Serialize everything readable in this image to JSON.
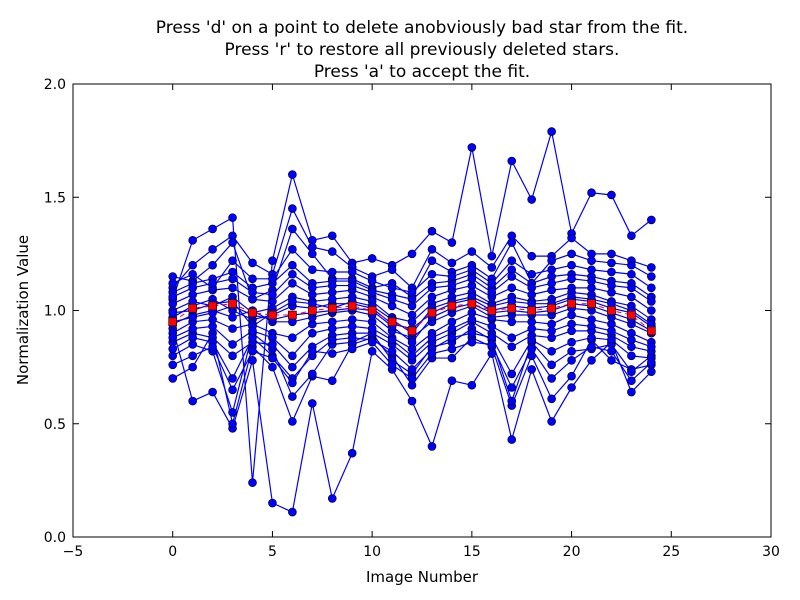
{
  "chart_data": {
    "type": "line",
    "title_lines": [
      "Press 'd' on a point to delete anobviously bad star from the fit.",
      "Press 'r' to restore all previously deleted stars.",
      "Press 'a' to accept the fit."
    ],
    "xlabel": "Image Number",
    "ylabel": "Normalization Value",
    "xlim": [
      -5,
      30
    ],
    "ylim": [
      0.0,
      2.0
    ],
    "xticks": [
      -5,
      0,
      5,
      10,
      15,
      20,
      25,
      30
    ],
    "yticks": [
      0.0,
      0.5,
      1.0,
      1.5,
      2.0
    ],
    "xtick_labels": [
      "−5",
      "0",
      "5",
      "10",
      "15",
      "20",
      "25",
      "30"
    ],
    "ytick_labels": [
      "0.0",
      "0.5",
      "1.0",
      "1.5",
      "2.0"
    ],
    "grid": false,
    "legend": null,
    "x": [
      0,
      1,
      2,
      3,
      4,
      5,
      6,
      7,
      8,
      9,
      10,
      11,
      12,
      13,
      14,
      15,
      16,
      17,
      18,
      19,
      20,
      21,
      22,
      23,
      24
    ],
    "series": [
      {
        "role": "stars",
        "color": "#0000ff",
        "marker": "circle",
        "lines": [
          [
            1.05,
            1.31,
            1.36,
            1.41,
            0.24,
            1.22,
            1.6,
            1.31,
            1.33,
            1.21,
            1.23,
            1.2,
            1.25,
            1.35,
            1.3,
            1.72,
            1.24,
            1.66,
            1.49,
            1.79,
            1.34,
            1.52,
            1.51,
            1.33,
            1.4
          ],
          [
            0.92,
            0.6,
            0.64,
            0.48,
            0.78,
            0.15,
            0.11,
            0.59,
            0.17,
            0.37,
            0.82,
            0.74,
            0.6,
            0.4,
            0.69,
            0.67,
            0.81,
            0.43,
            0.74,
            0.51,
            0.66,
            0.78,
            0.86,
            0.64,
            0.73
          ],
          [
            0.7,
            0.75,
            0.9,
            0.5,
            0.84,
            0.75,
            0.51,
            0.71,
            0.69,
            0.85,
            0.88,
            0.8,
            0.67,
            0.79,
            0.79,
            0.88,
            0.84,
            0.58,
            0.8,
            0.61,
            0.71,
            0.87,
            0.78,
            0.74,
            0.76
          ],
          [
            1.1,
            1.2,
            1.27,
            1.33,
            1.21,
            1.16,
            1.45,
            1.28,
            1.26,
            1.19,
            1.15,
            1.18,
            1.1,
            1.27,
            1.21,
            1.26,
            1.19,
            1.33,
            1.24,
            1.24,
            1.32,
            1.25,
            1.25,
            1.22,
            1.19
          ],
          [
            1.15,
            1.13,
            1.2,
            1.3,
            1.05,
            1.09,
            1.36,
            1.25,
            1.14,
            1.14,
            1.1,
            1.12,
            1.06,
            1.22,
            1.17,
            1.2,
            1.14,
            1.3,
            1.12,
            1.22,
            1.25,
            1.22,
            1.21,
            1.2,
            1.15
          ],
          [
            0.8,
            0.85,
            0.82,
            0.55,
            0.9,
            0.83,
            0.62,
            0.72,
            0.85,
            0.86,
            0.9,
            0.78,
            0.72,
            0.84,
            0.86,
            0.92,
            0.87,
            0.6,
            0.86,
            0.76,
            0.82,
            0.83,
            0.85,
            0.73,
            0.8
          ],
          [
            0.97,
            1.02,
            1.05,
            1.0,
            0.96,
            0.98,
            1.02,
            1.01,
            1.03,
            1.03,
            1.01,
            0.94,
            0.92,
            0.99,
            1.03,
            1.05,
            1.0,
            1.02,
            1.01,
            1.02,
            1.05,
            1.04,
            1.01,
            0.99,
            0.93
          ],
          [
            0.9,
            0.95,
            0.96,
            0.92,
            0.94,
            0.9,
            0.88,
            0.94,
            0.95,
            0.96,
            0.95,
            0.88,
            0.83,
            0.9,
            0.95,
            0.99,
            0.96,
            0.95,
            0.95,
            0.94,
            0.98,
            0.96,
            0.94,
            0.9,
            0.86
          ],
          [
            1.03,
            1.07,
            1.09,
            1.1,
            1.05,
            1.04,
            1.12,
            1.07,
            1.08,
            1.09,
            1.06,
            1.02,
            0.98,
            1.06,
            1.09,
            1.11,
            1.06,
            1.1,
            1.07,
            1.09,
            1.1,
            1.1,
            1.08,
            1.06,
            1.0
          ],
          [
            0.86,
            0.9,
            0.88,
            0.8,
            0.86,
            0.85,
            0.75,
            0.84,
            0.89,
            0.9,
            0.9,
            0.85,
            0.78,
            0.86,
            0.9,
            0.95,
            0.9,
            0.84,
            0.89,
            0.88,
            0.91,
            0.91,
            0.89,
            0.84,
            0.82
          ],
          [
            1.08,
            1.12,
            1.14,
            1.17,
            1.1,
            1.12,
            1.2,
            1.12,
            1.13,
            1.13,
            1.09,
            1.07,
            1.05,
            1.12,
            1.13,
            1.16,
            1.1,
            1.18,
            1.12,
            1.15,
            1.16,
            1.15,
            1.13,
            1.12,
            1.06
          ],
          [
            0.94,
            0.98,
            1.0,
            0.97,
            1.0,
            0.95,
            0.95,
            0.97,
            0.99,
            1.0,
            0.98,
            0.91,
            0.88,
            0.95,
            0.99,
            1.02,
            0.97,
            0.98,
            0.98,
            0.98,
            1.01,
            1.0,
            0.97,
            0.94,
            0.9
          ],
          [
            1.0,
            1.04,
            1.02,
            1.06,
            0.99,
            1.01,
            1.06,
            1.04,
            1.05,
            1.06,
            1.04,
            0.97,
            0.95,
            1.03,
            1.06,
            1.08,
            1.03,
            1.06,
            1.04,
            1.05,
            1.08,
            1.07,
            1.04,
            1.02,
            0.96
          ],
          [
            0.83,
            0.88,
            0.86,
            0.7,
            0.88,
            0.8,
            0.7,
            0.8,
            0.87,
            0.88,
            0.87,
            0.82,
            0.74,
            0.83,
            0.88,
            0.9,
            0.88,
            0.72,
            0.87,
            0.82,
            0.86,
            0.88,
            0.87,
            0.8,
            0.79
          ],
          [
            1.12,
            1.16,
            1.1,
            1.22,
            1.14,
            1.14,
            1.27,
            1.18,
            1.17,
            1.17,
            1.13,
            1.1,
            1.08,
            1.16,
            1.15,
            1.18,
            1.12,
            1.22,
            1.16,
            1.18,
            1.2,
            1.18,
            1.17,
            1.16,
            1.1
          ],
          [
            0.76,
            0.8,
            0.84,
            0.65,
            0.82,
            0.79,
            0.68,
            0.82,
            0.81,
            0.83,
            0.86,
            0.76,
            0.7,
            0.81,
            0.83,
            0.86,
            0.85,
            0.66,
            0.83,
            0.7,
            0.78,
            0.84,
            0.82,
            0.69,
            0.77
          ],
          [
            0.99,
            1.0,
            1.03,
            1.04,
            0.93,
            0.99,
            1.04,
            1.03,
            1.01,
            1.04,
            1.02,
            0.96,
            0.9,
            1.01,
            1.04,
            1.06,
            1.02,
            1.04,
            1.03,
            1.03,
            1.06,
            1.05,
            1.03,
            1.0,
            0.94
          ],
          [
            0.95,
            0.97,
            0.99,
            1.02,
            0.98,
            0.96,
            0.98,
            0.99,
            1.0,
            1.01,
            1.0,
            0.93,
            0.86,
            0.97,
            1.01,
            1.03,
            0.99,
            1.0,
            0.99,
            1.0,
            1.03,
            1.02,
            0.99,
            0.96,
            0.91
          ],
          [
            0.88,
            0.92,
            0.93,
            0.85,
            0.91,
            0.88,
            0.8,
            0.9,
            0.92,
            0.93,
            0.92,
            0.87,
            0.8,
            0.88,
            0.92,
            0.96,
            0.93,
            0.88,
            0.92,
            0.91,
            0.94,
            0.93,
            0.91,
            0.87,
            0.84
          ],
          [
            1.06,
            1.1,
            1.12,
            1.14,
            1.08,
            1.07,
            1.16,
            1.1,
            1.11,
            1.11,
            1.08,
            1.05,
            1.02,
            1.1,
            1.11,
            1.14,
            1.08,
            1.15,
            1.1,
            1.12,
            1.14,
            1.13,
            1.11,
            1.1,
            1.04
          ]
        ]
      },
      {
        "role": "mean",
        "color": "#ff0000",
        "marker": "square",
        "values": [
          0.95,
          1.01,
          1.02,
          1.03,
          0.99,
          0.98,
          0.98,
          1.0,
          1.01,
          1.02,
          1.0,
          0.95,
          0.91,
          0.99,
          1.02,
          1.03,
          1.0,
          1.01,
          1.0,
          1.01,
          1.03,
          1.03,
          1.0,
          0.98,
          0.91
        ]
      }
    ]
  }
}
